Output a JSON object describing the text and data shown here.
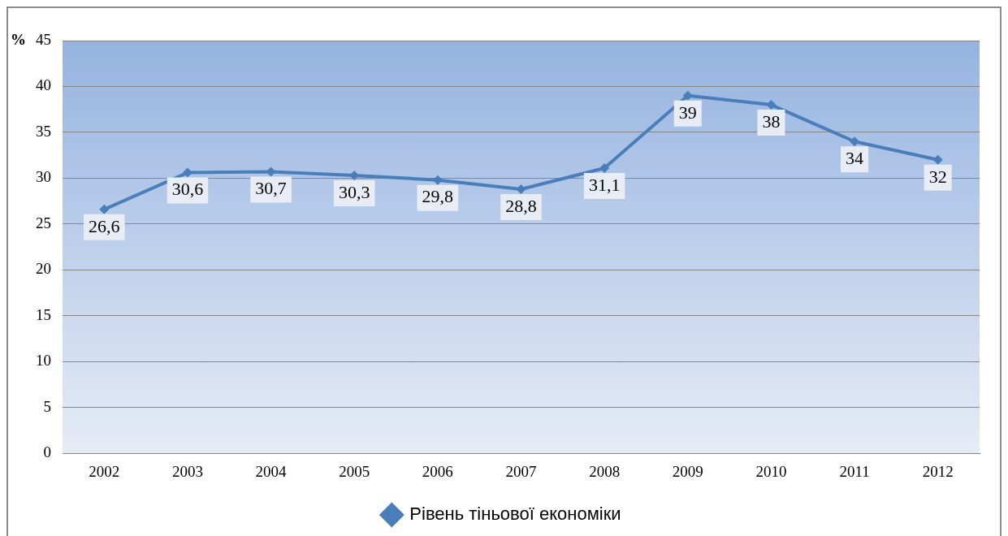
{
  "chart_data": {
    "type": "line",
    "ylabel": "%",
    "categories": [
      "2002",
      "2003",
      "2004",
      "2005",
      "2006",
      "2007",
      "2008",
      "2009",
      "2010",
      "2011",
      "2012"
    ],
    "series": [
      {
        "name": "Рівень тіньової економіки",
        "color": "#4a7ebb",
        "values": [
          26.6,
          30.6,
          30.7,
          30.3,
          29.8,
          28.8,
          31.1,
          39,
          38,
          34,
          32
        ],
        "value_labels": [
          "26,6",
          "30,6",
          "30,7",
          "30,3",
          "29,8",
          "28,8",
          "31,1",
          "39",
          "38",
          "34",
          "32"
        ]
      }
    ],
    "ylim": [
      0,
      45
    ],
    "yticks": [
      0,
      5,
      10,
      15,
      20,
      25,
      30,
      35,
      40,
      45
    ],
    "grid": "y",
    "legend": "bottom",
    "marker": "diamond",
    "line_style": "solid"
  }
}
